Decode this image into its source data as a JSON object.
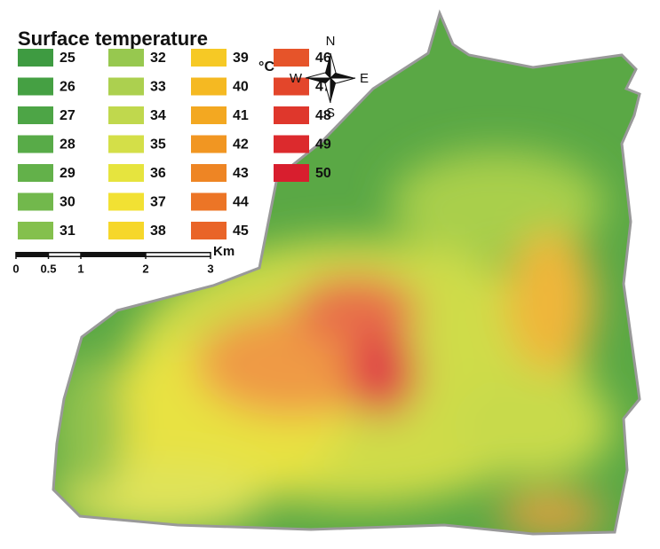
{
  "title": "Surface temperature",
  "legend": {
    "unit": "°C",
    "items": [
      {
        "value": 25,
        "color": "#3e9b41"
      },
      {
        "value": 26,
        "color": "#45a043"
      },
      {
        "value": 27,
        "color": "#4da546"
      },
      {
        "value": 28,
        "color": "#58ab48"
      },
      {
        "value": 29,
        "color": "#63b14a"
      },
      {
        "value": 30,
        "color": "#72b84c"
      },
      {
        "value": 31,
        "color": "#84c04d"
      },
      {
        "value": 32,
        "color": "#97c84f"
      },
      {
        "value": 33,
        "color": "#acd04f"
      },
      {
        "value": 34,
        "color": "#c0d84d"
      },
      {
        "value": 35,
        "color": "#d4df48"
      },
      {
        "value": 36,
        "color": "#e6e43e"
      },
      {
        "value": 37,
        "color": "#f2e133"
      },
      {
        "value": 38,
        "color": "#f6d72a"
      },
      {
        "value": 39,
        "color": "#f6c925"
      },
      {
        "value": 40,
        "color": "#f5b922"
      },
      {
        "value": 41,
        "color": "#f3a821"
      },
      {
        "value": 42,
        "color": "#f19622"
      },
      {
        "value": 43,
        "color": "#ee8524"
      },
      {
        "value": 44,
        "color": "#ec7526"
      },
      {
        "value": 45,
        "color": "#e96428"
      },
      {
        "value": 46,
        "color": "#e6542a"
      },
      {
        "value": 47,
        "color": "#e3462b"
      },
      {
        "value": 48,
        "color": "#df372c"
      },
      {
        "value": 49,
        "color": "#dc2a2d"
      },
      {
        "value": 50,
        "color": "#d81e2e"
      }
    ]
  },
  "compass": {
    "north": "N",
    "south": "S",
    "west": "W",
    "east": "E"
  },
  "scale_bar": {
    "unit": "Km",
    "ticks": [
      0,
      0.5,
      1,
      2,
      3
    ]
  }
}
